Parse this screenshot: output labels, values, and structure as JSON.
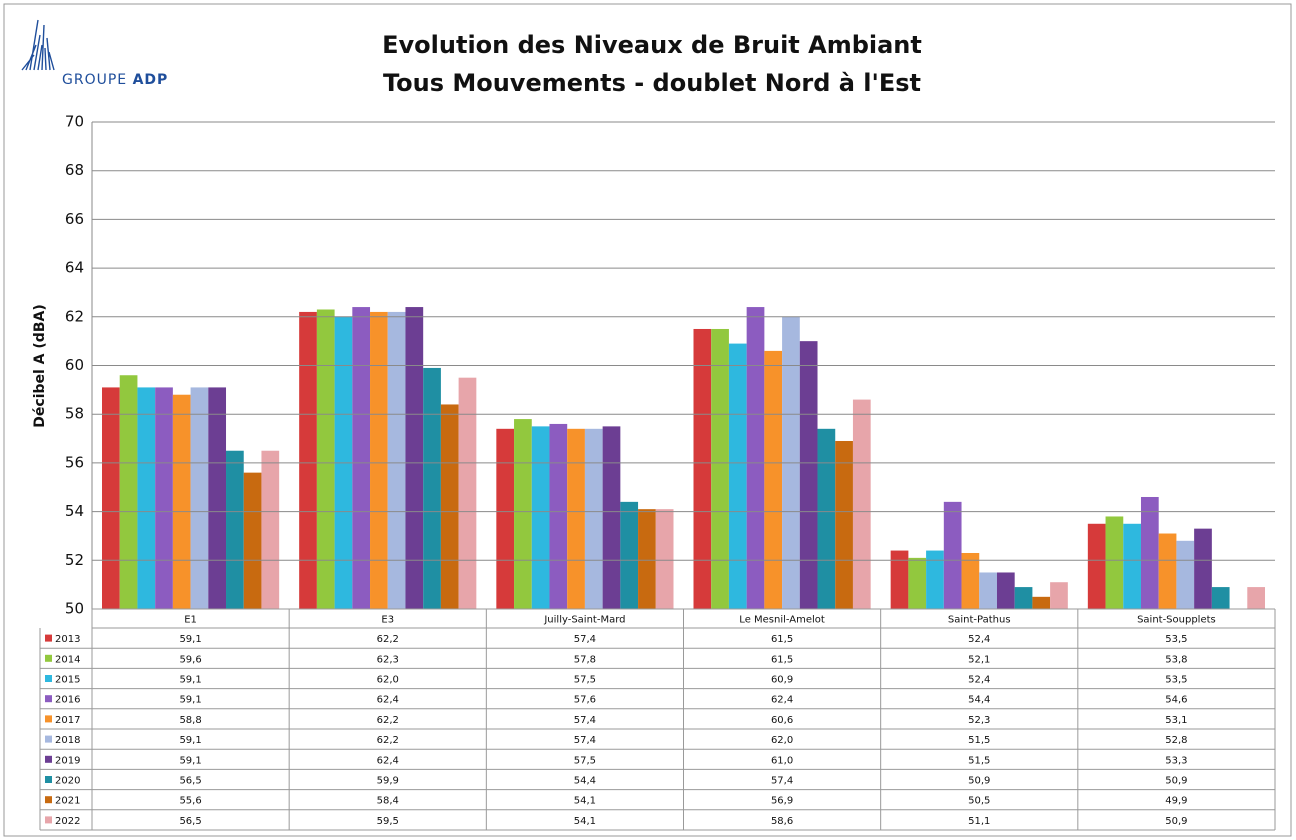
{
  "logo": {
    "text": "GROUPE",
    "brand": "ADP"
  },
  "chart_data": {
    "type": "bar",
    "title": "Evolution des Niveaux de Bruit Ambiant",
    "subtitle": "Tous Mouvements - doublet Nord à l'Est",
    "y_label": "Décibel A (dBA)",
    "categories": [
      "E1",
      "E3",
      "Juilly-Saint-Mard",
      "Le Mesnil-Amelot",
      "Saint-Pathus",
      "Saint-Soupplets"
    ],
    "ylim": [
      50,
      70
    ],
    "yticks": [
      50,
      52,
      54,
      56,
      58,
      60,
      62,
      64,
      66,
      68,
      70
    ],
    "grid": true,
    "series": [
      {
        "name": "2013",
        "color": "#d63a3a",
        "values": [
          59.1,
          62.2,
          57.4,
          61.5,
          52.4,
          53.5
        ],
        "value_labels": [
          "59,1",
          "62,2",
          "57,4",
          "61,5",
          "52,4",
          "53,5"
        ]
      },
      {
        "name": "2014",
        "color": "#92c83e",
        "values": [
          59.6,
          62.3,
          57.8,
          61.5,
          52.1,
          53.8
        ],
        "value_labels": [
          "59,6",
          "62,3",
          "57,8",
          "61,5",
          "52,1",
          "53,8"
        ]
      },
      {
        "name": "2015",
        "color": "#2eb8df",
        "values": [
          59.1,
          62.0,
          57.5,
          60.9,
          52.4,
          53.5
        ],
        "value_labels": [
          "59,1",
          "62,0",
          "57,5",
          "60,9",
          "52,4",
          "53,5"
        ]
      },
      {
        "name": "2016",
        "color": "#8c5cc0",
        "values": [
          59.1,
          62.4,
          57.6,
          62.4,
          54.4,
          54.6
        ],
        "value_labels": [
          "59,1",
          "62,4",
          "57,6",
          "62,4",
          "54,4",
          "54,6"
        ]
      },
      {
        "name": "2017",
        "color": "#f7922a",
        "values": [
          58.8,
          62.2,
          57.4,
          60.6,
          52.3,
          53.1
        ],
        "value_labels": [
          "58,8",
          "62,2",
          "57,4",
          "60,6",
          "52,3",
          "53,1"
        ]
      },
      {
        "name": "2018",
        "color": "#a6b8df",
        "values": [
          59.1,
          62.2,
          57.4,
          62.0,
          51.5,
          52.8
        ],
        "value_labels": [
          "59,1",
          "62,2",
          "57,4",
          "62,0",
          "51,5",
          "52,8"
        ]
      },
      {
        "name": "2019",
        "color": "#6c3e93",
        "values": [
          59.1,
          62.4,
          57.5,
          61.0,
          51.5,
          53.3
        ],
        "value_labels": [
          "59,1",
          "62,4",
          "57,5",
          "61,0",
          "51,5",
          "53,3"
        ]
      },
      {
        "name": "2020",
        "color": "#1f8fa3",
        "values": [
          56.5,
          59.9,
          54.4,
          57.4,
          50.9,
          50.9
        ],
        "value_labels": [
          "56,5",
          "59,9",
          "54,4",
          "57,4",
          "50,9",
          "50,9"
        ]
      },
      {
        "name": "2021",
        "color": "#c86a10",
        "values": [
          55.6,
          58.4,
          54.1,
          56.9,
          50.5,
          49.9
        ],
        "value_labels": [
          "55,6",
          "58,4",
          "54,1",
          "56,9",
          "50,5",
          "49,9"
        ]
      },
      {
        "name": "2022",
        "color": "#e7a5aa",
        "values": [
          56.5,
          59.5,
          54.1,
          58.6,
          51.1,
          50.9
        ],
        "value_labels": [
          "56,5",
          "59,5",
          "54,1",
          "58,6",
          "51,1",
          "50,9"
        ]
      }
    ]
  }
}
